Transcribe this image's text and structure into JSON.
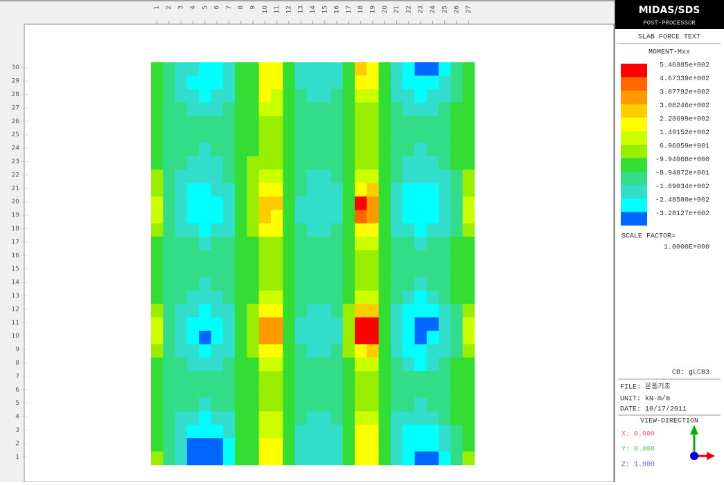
{
  "header": {
    "title": "MIDAS/SDS",
    "subtitle": "POST-PROCESSOR"
  },
  "panel": {
    "type_label": "SLAB FORCE TEXT",
    "component": "MOMENT-Mxx",
    "legend": {
      "colors": [
        "#ff0000",
        "#ff6600",
        "#ff9900",
        "#ffcc00",
        "#ffff00",
        "#ccff00",
        "#99ee00",
        "#33dd33",
        "#33dd88",
        "#33ddcc",
        "#00ffff",
        "#0066ff"
      ],
      "labels": [
        "5.46885e+002",
        "4.67339e+002",
        "3.87792e+002",
        "3.08246e+002",
        "2.28699e+002",
        "1.49152e+002",
        "6.96059e+001",
        "-9.94068e+000",
        "-8.94872e+001",
        "-1.69034e+002",
        "-2.48580e+002",
        "-3.28127e+002"
      ]
    },
    "scale_factor_label": "SCALE FACTOR=",
    "scale_factor": "1.0000E+000",
    "cb": "CB: gLCB3",
    "file": "FILE: 온풍기초",
    "unit": "UNIT: kN·m/m",
    "date": "DATE: 10/17/2011",
    "view_direction": "VIEW-DIRECTION",
    "view": [
      "X: 0.000",
      "Y: 0.000",
      "Z: 1.000"
    ]
  },
  "grid": {
    "columns": [
      1,
      2,
      3,
      4,
      5,
      6,
      7,
      8,
      9,
      10,
      11,
      12,
      13,
      14,
      15,
      16,
      17,
      18,
      19,
      20,
      21,
      22,
      23,
      24,
      25,
      26,
      27
    ],
    "rows": [
      30,
      29,
      28,
      27,
      26,
      25,
      24,
      23,
      22,
      21,
      20,
      19,
      18,
      17,
      16,
      15,
      14,
      13,
      12,
      11,
      10,
      9,
      8,
      7,
      6,
      5,
      4,
      3,
      2,
      1
    ],
    "levels": [
      [
        7,
        8,
        9,
        9,
        10,
        10,
        9,
        7,
        7,
        4,
        4,
        7,
        9,
        9,
        9,
        9,
        7,
        3,
        4,
        7,
        9,
        10,
        11,
        11,
        10,
        8,
        7
      ],
      [
        7,
        8,
        9,
        10,
        10,
        10,
        9,
        7,
        7,
        4,
        4,
        7,
        9,
        9,
        9,
        9,
        7,
        4,
        4,
        7,
        9,
        10,
        10,
        10,
        9,
        8,
        7
      ],
      [
        7,
        8,
        9,
        9,
        10,
        9,
        9,
        7,
        7,
        4,
        5,
        7,
        8,
        9,
        9,
        8,
        7,
        5,
        5,
        7,
        9,
        9,
        10,
        9,
        9,
        8,
        7
      ],
      [
        7,
        8,
        8,
        9,
        9,
        9,
        8,
        7,
        7,
        5,
        5,
        7,
        8,
        8,
        8,
        8,
        7,
        6,
        6,
        7,
        8,
        9,
        9,
        9,
        8,
        7,
        7
      ],
      [
        7,
        8,
        8,
        8,
        8,
        8,
        8,
        7,
        7,
        6,
        6,
        7,
        8,
        8,
        8,
        8,
        7,
        6,
        6,
        7,
        8,
        8,
        8,
        8,
        8,
        7,
        7
      ],
      [
        7,
        8,
        8,
        8,
        8,
        8,
        8,
        7,
        7,
        6,
        6,
        7,
        8,
        8,
        8,
        8,
        7,
        6,
        6,
        7,
        8,
        8,
        8,
        8,
        8,
        7,
        7
      ],
      [
        7,
        8,
        8,
        8,
        9,
        8,
        8,
        7,
        7,
        6,
        6,
        7,
        8,
        8,
        8,
        8,
        7,
        6,
        6,
        7,
        8,
        8,
        9,
        8,
        8,
        7,
        7
      ],
      [
        7,
        8,
        8,
        9,
        9,
        9,
        8,
        7,
        6,
        6,
        6,
        7,
        8,
        8,
        8,
        8,
        7,
        6,
        6,
        7,
        8,
        9,
        9,
        9,
        8,
        7,
        7
      ],
      [
        6,
        8,
        9,
        9,
        9,
        9,
        8,
        7,
        6,
        5,
        5,
        7,
        8,
        9,
        9,
        8,
        7,
        5,
        5,
        7,
        8,
        9,
        9,
        9,
        9,
        8,
        6
      ],
      [
        6,
        8,
        9,
        10,
        10,
        9,
        9,
        7,
        6,
        4,
        4,
        7,
        8,
        9,
        9,
        9,
        7,
        4,
        3,
        7,
        9,
        10,
        10,
        10,
        9,
        8,
        6
      ],
      [
        5,
        8,
        9,
        10,
        10,
        10,
        9,
        7,
        6,
        3,
        3,
        7,
        9,
        9,
        9,
        9,
        7,
        0,
        2,
        7,
        9,
        10,
        10,
        10,
        9,
        8,
        5
      ],
      [
        5,
        8,
        9,
        10,
        10,
        10,
        9,
        7,
        6,
        3,
        4,
        7,
        9,
        9,
        9,
        9,
        7,
        1,
        2,
        7,
        9,
        10,
        10,
        10,
        9,
        8,
        5
      ],
      [
        6,
        8,
        9,
        9,
        10,
        9,
        9,
        7,
        6,
        4,
        4,
        7,
        8,
        9,
        9,
        8,
        7,
        4,
        4,
        7,
        9,
        9,
        10,
        9,
        9,
        8,
        6
      ],
      [
        7,
        8,
        8,
        8,
        9,
        8,
        8,
        7,
        7,
        6,
        6,
        7,
        8,
        8,
        8,
        8,
        7,
        5,
        5,
        7,
        8,
        8,
        9,
        8,
        8,
        7,
        7
      ],
      [
        7,
        8,
        8,
        8,
        8,
        8,
        8,
        7,
        7,
        6,
        6,
        7,
        8,
        8,
        8,
        8,
        7,
        6,
        6,
        7,
        8,
        8,
        8,
        8,
        8,
        7,
        7
      ],
      [
        7,
        8,
        8,
        8,
        8,
        8,
        8,
        7,
        7,
        6,
        6,
        7,
        8,
        8,
        8,
        8,
        7,
        6,
        6,
        7,
        8,
        8,
        8,
        8,
        8,
        7,
        7
      ],
      [
        7,
        8,
        8,
        8,
        9,
        8,
        8,
        7,
        7,
        6,
        6,
        7,
        8,
        8,
        8,
        8,
        7,
        6,
        6,
        7,
        8,
        8,
        9,
        8,
        8,
        7,
        7
      ],
      [
        7,
        8,
        8,
        9,
        9,
        9,
        8,
        7,
        7,
        5,
        5,
        7,
        8,
        8,
        8,
        8,
        7,
        5,
        5,
        7,
        8,
        9,
        10,
        9,
        8,
        7,
        7
      ],
      [
        6,
        8,
        9,
        9,
        10,
        9,
        9,
        7,
        6,
        4,
        4,
        7,
        8,
        9,
        9,
        8,
        6,
        3,
        3,
        7,
        9,
        10,
        10,
        10,
        9,
        8,
        6
      ],
      [
        5,
        8,
        9,
        10,
        10,
        10,
        9,
        7,
        6,
        2,
        2,
        7,
        9,
        9,
        9,
        9,
        6,
        0,
        0,
        7,
        9,
        10,
        11,
        11,
        9,
        8,
        5
      ],
      [
        5,
        8,
        9,
        10,
        11,
        10,
        9,
        7,
        6,
        2,
        2,
        7,
        9,
        9,
        9,
        9,
        6,
        0,
        0,
        7,
        9,
        10,
        11,
        10,
        9,
        8,
        5
      ],
      [
        6,
        8,
        9,
        9,
        10,
        9,
        9,
        7,
        6,
        4,
        4,
        7,
        8,
        9,
        9,
        8,
        6,
        4,
        3,
        7,
        9,
        10,
        10,
        9,
        9,
        8,
        6
      ],
      [
        7,
        8,
        8,
        9,
        9,
        9,
        8,
        7,
        7,
        5,
        5,
        7,
        8,
        8,
        8,
        8,
        7,
        5,
        5,
        7,
        8,
        9,
        10,
        9,
        8,
        7,
        7
      ],
      [
        7,
        8,
        8,
        8,
        8,
        8,
        8,
        7,
        7,
        6,
        6,
        7,
        8,
        8,
        8,
        8,
        7,
        6,
        6,
        7,
        8,
        8,
        8,
        8,
        8,
        7,
        7
      ],
      [
        7,
        8,
        8,
        8,
        8,
        8,
        8,
        7,
        7,
        6,
        6,
        7,
        8,
        8,
        8,
        8,
        7,
        6,
        6,
        7,
        8,
        8,
        8,
        8,
        8,
        7,
        7
      ],
      [
        7,
        8,
        8,
        8,
        9,
        8,
        8,
        7,
        7,
        6,
        6,
        7,
        8,
        8,
        8,
        8,
        7,
        6,
        6,
        7,
        8,
        8,
        9,
        8,
        8,
        7,
        7
      ],
      [
        7,
        8,
        9,
        9,
        10,
        9,
        9,
        7,
        7,
        5,
        5,
        7,
        8,
        9,
        9,
        8,
        7,
        5,
        5,
        7,
        9,
        9,
        9,
        9,
        8,
        7,
        7
      ],
      [
        7,
        8,
        9,
        10,
        10,
        10,
        9,
        7,
        7,
        5,
        5,
        7,
        9,
        9,
        9,
        9,
        7,
        4,
        4,
        7,
        9,
        10,
        10,
        10,
        9,
        8,
        7
      ],
      [
        7,
        8,
        9,
        11,
        11,
        11,
        10,
        7,
        7,
        4,
        4,
        7,
        9,
        9,
        9,
        9,
        7,
        4,
        4,
        7,
        9,
        10,
        10,
        10,
        9,
        8,
        7
      ],
      [
        6,
        8,
        9,
        11,
        11,
        11,
        10,
        7,
        7,
        4,
        4,
        7,
        9,
        9,
        9,
        9,
        7,
        4,
        4,
        7,
        9,
        10,
        11,
        11,
        10,
        8,
        6
      ]
    ]
  }
}
